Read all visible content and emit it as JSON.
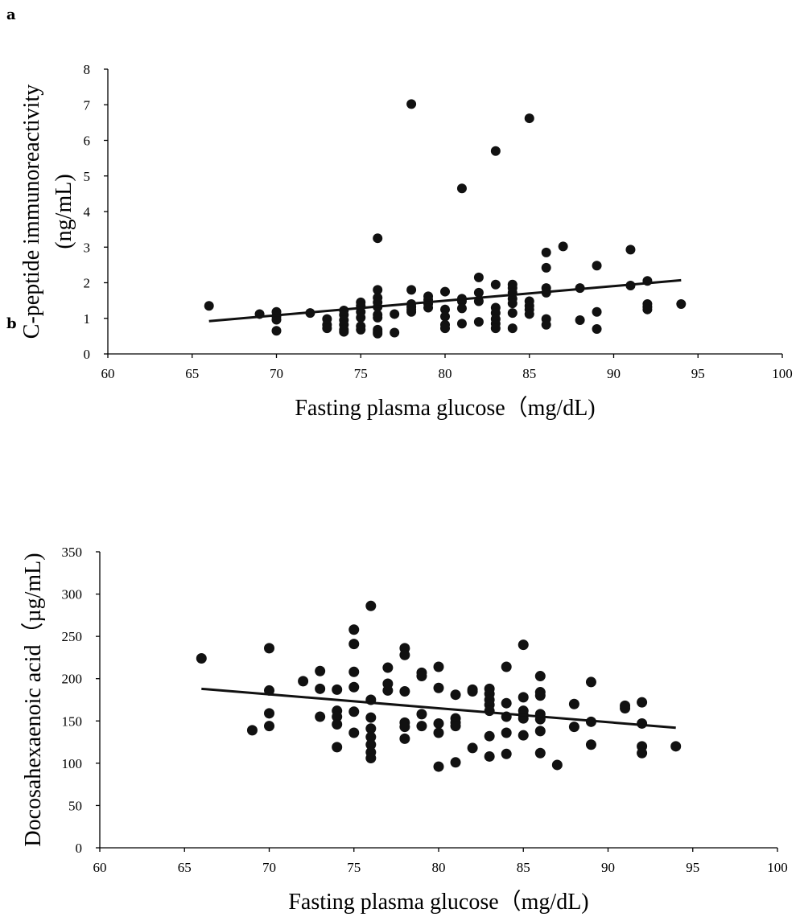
{
  "chart_data": [
    {
      "panel": "a",
      "type": "scatter",
      "xlabel": "Fasting plasma glucose（mg/dL)",
      "ylabel_lines": [
        "C-peptide immunoreactivity",
        "(ng/mL)"
      ],
      "xlim": [
        60,
        100
      ],
      "ylim": [
        0,
        8
      ],
      "xticks": [
        "60",
        "65",
        "70",
        "75",
        "80",
        "85",
        "90",
        "95",
        "100"
      ],
      "yticks": [
        "0",
        "1",
        "2",
        "3",
        "4",
        "5",
        "6",
        "7",
        "8"
      ],
      "trendline": {
        "x": [
          66,
          94
        ],
        "y": [
          0.92,
          2.07
        ]
      },
      "points": [
        [
          66,
          1.35
        ],
        [
          69,
          1.12
        ],
        [
          70,
          1.18
        ],
        [
          70,
          1.05
        ],
        [
          70,
          0.96
        ],
        [
          70,
          0.65
        ],
        [
          72,
          1.15
        ],
        [
          73,
          0.98
        ],
        [
          73,
          0.82
        ],
        [
          73,
          0.72
        ],
        [
          74,
          1.22
        ],
        [
          74,
          1.1
        ],
        [
          74,
          0.95
        ],
        [
          74,
          0.82
        ],
        [
          74,
          0.68
        ],
        [
          74,
          0.62
        ],
        [
          75,
          1.45
        ],
        [
          75,
          1.35
        ],
        [
          75,
          1.18
        ],
        [
          75,
          1.02
        ],
        [
          75,
          0.78
        ],
        [
          75,
          0.68
        ],
        [
          76,
          3.25
        ],
        [
          76,
          1.8
        ],
        [
          76,
          1.58
        ],
        [
          76,
          1.45
        ],
        [
          76,
          1.32
        ],
        [
          76,
          1.1
        ],
        [
          76,
          1.02
        ],
        [
          76,
          0.68
        ],
        [
          76,
          0.62
        ],
        [
          76,
          0.57
        ],
        [
          77,
          1.12
        ],
        [
          77,
          0.6
        ],
        [
          78,
          7.02
        ],
        [
          78,
          1.8
        ],
        [
          78,
          1.4
        ],
        [
          78,
          1.32
        ],
        [
          78,
          1.25
        ],
        [
          78,
          1.18
        ],
        [
          79,
          1.62
        ],
        [
          79,
          1.52
        ],
        [
          79,
          1.4
        ],
        [
          79,
          1.3
        ],
        [
          80,
          1.75
        ],
        [
          80,
          1.25
        ],
        [
          80,
          1.05
        ],
        [
          80,
          0.82
        ],
        [
          80,
          0.72
        ],
        [
          81,
          4.65
        ],
        [
          81,
          1.55
        ],
        [
          81,
          1.48
        ],
        [
          81,
          1.28
        ],
        [
          81,
          0.85
        ],
        [
          82,
          2.15
        ],
        [
          82,
          1.72
        ],
        [
          82,
          1.48
        ],
        [
          82,
          0.9
        ],
        [
          83,
          5.7
        ],
        [
          83,
          1.95
        ],
        [
          83,
          1.3
        ],
        [
          83,
          1.15
        ],
        [
          83,
          0.98
        ],
        [
          83,
          0.85
        ],
        [
          83,
          0.72
        ],
        [
          84,
          1.95
        ],
        [
          84,
          1.85
        ],
        [
          84,
          1.72
        ],
        [
          84,
          1.55
        ],
        [
          84,
          1.42
        ],
        [
          84,
          1.15
        ],
        [
          84,
          0.72
        ],
        [
          85,
          6.62
        ],
        [
          85,
          1.48
        ],
        [
          85,
          1.35
        ],
        [
          85,
          1.25
        ],
        [
          85,
          1.12
        ],
        [
          86,
          2.85
        ],
        [
          86,
          2.42
        ],
        [
          86,
          1.85
        ],
        [
          86,
          1.72
        ],
        [
          86,
          0.98
        ],
        [
          86,
          0.82
        ],
        [
          87,
          3.02
        ],
        [
          88,
          1.85
        ],
        [
          88,
          0.95
        ],
        [
          89,
          2.48
        ],
        [
          89,
          1.18
        ],
        [
          89,
          0.7
        ],
        [
          91,
          2.93
        ],
        [
          91,
          1.92
        ],
        [
          92,
          2.05
        ],
        [
          92,
          1.4
        ],
        [
          92,
          1.32
        ],
        [
          92,
          1.25
        ],
        [
          94,
          1.4
        ]
      ]
    },
    {
      "panel": "b",
      "type": "scatter",
      "xlabel": "Fasting plasma glucose（mg/dL)",
      "ylabel_lines": [
        "Docosahexaenoic acid（µg/mL)"
      ],
      "xlim": [
        60,
        100
      ],
      "ylim": [
        0,
        350
      ],
      "xticks": [
        "60",
        "65",
        "70",
        "75",
        "80",
        "85",
        "90",
        "95",
        "100"
      ],
      "yticks": [
        "0",
        "50",
        "100",
        "150",
        "200",
        "250",
        "300",
        "350"
      ],
      "trendline": {
        "x": [
          66,
          94
        ],
        "y": [
          188,
          142
        ]
      },
      "points": [
        [
          66,
          224
        ],
        [
          69,
          139
        ],
        [
          70,
          236
        ],
        [
          70,
          186
        ],
        [
          70,
          159
        ],
        [
          70,
          144
        ],
        [
          72,
          197
        ],
        [
          73,
          209
        ],
        [
          73,
          188
        ],
        [
          73,
          155
        ],
        [
          74,
          187
        ],
        [
          74,
          162
        ],
        [
          74,
          155
        ],
        [
          74,
          146
        ],
        [
          74,
          119
        ],
        [
          75,
          258
        ],
        [
          75,
          241
        ],
        [
          75,
          208
        ],
        [
          75,
          190
        ],
        [
          75,
          161
        ],
        [
          75,
          136
        ],
        [
          76,
          286
        ],
        [
          76,
          175
        ],
        [
          76,
          154
        ],
        [
          76,
          141
        ],
        [
          76,
          131
        ],
        [
          76,
          122
        ],
        [
          76,
          113
        ],
        [
          76,
          106
        ],
        [
          77,
          213
        ],
        [
          77,
          194
        ],
        [
          77,
          186
        ],
        [
          78,
          236
        ],
        [
          78,
          228
        ],
        [
          78,
          185
        ],
        [
          78,
          148
        ],
        [
          78,
          143
        ],
        [
          78,
          129
        ],
        [
          79,
          207
        ],
        [
          79,
          203
        ],
        [
          79,
          158
        ],
        [
          79,
          144
        ],
        [
          80,
          214
        ],
        [
          80,
          189
        ],
        [
          80,
          147
        ],
        [
          80,
          136
        ],
        [
          80,
          96
        ],
        [
          81,
          181
        ],
        [
          81,
          153
        ],
        [
          81,
          148
        ],
        [
          81,
          144
        ],
        [
          81,
          101
        ],
        [
          82,
          187
        ],
        [
          82,
          185
        ],
        [
          82,
          118
        ],
        [
          83,
          188
        ],
        [
          83,
          182
        ],
        [
          83,
          175
        ],
        [
          83,
          169
        ],
        [
          83,
          162
        ],
        [
          83,
          132
        ],
        [
          83,
          108
        ],
        [
          84,
          214
        ],
        [
          84,
          171
        ],
        [
          84,
          155
        ],
        [
          84,
          136
        ],
        [
          84,
          111
        ],
        [
          85,
          240
        ],
        [
          85,
          178
        ],
        [
          85,
          162
        ],
        [
          85,
          157
        ],
        [
          85,
          153
        ],
        [
          85,
          133
        ],
        [
          86,
          203
        ],
        [
          86,
          184
        ],
        [
          86,
          180
        ],
        [
          86,
          158
        ],
        [
          86,
          152
        ],
        [
          86,
          138
        ],
        [
          86,
          112
        ],
        [
          87,
          98
        ],
        [
          88,
          170
        ],
        [
          88,
          143
        ],
        [
          89,
          196
        ],
        [
          89,
          149
        ],
        [
          89,
          122
        ],
        [
          91,
          168
        ],
        [
          91,
          165
        ],
        [
          92,
          172
        ],
        [
          92,
          147
        ],
        [
          92,
          120
        ],
        [
          92,
          112
        ],
        [
          94,
          120
        ]
      ]
    }
  ]
}
